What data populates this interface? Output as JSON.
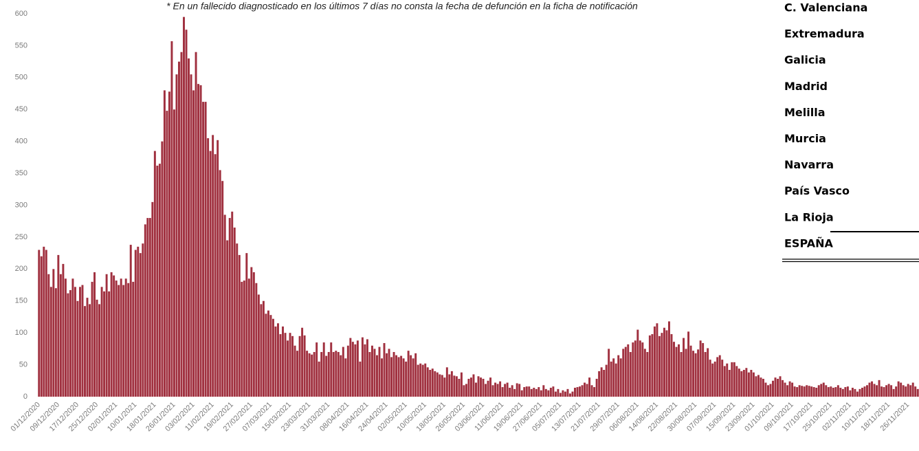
{
  "chart_data": {
    "type": "bar",
    "note": "* En un fallecido diagnosticado en los últimos 7 días no consta la fecha de defunción en la ficha de notificación",
    "color": "#a0303f",
    "grid": false,
    "ylim": [
      0,
      600
    ],
    "yticks": [
      0,
      50,
      100,
      150,
      200,
      250,
      300,
      350,
      400,
      450,
      500,
      550,
      600
    ],
    "categories": [
      "01/12/2020",
      null,
      null,
      null,
      null,
      null,
      null,
      null,
      "09/12/2020",
      null,
      null,
      null,
      null,
      null,
      null,
      null,
      "17/12/2020",
      null,
      null,
      null,
      null,
      null,
      null,
      null,
      "25/12/2020",
      null,
      null,
      null,
      null,
      null,
      null,
      null,
      "02/01/2021",
      null,
      null,
      null,
      null,
      null,
      null,
      null,
      "10/01/2021",
      null,
      null,
      null,
      null,
      null,
      null,
      null,
      "18/01/2021",
      null,
      null,
      null,
      null,
      null,
      null,
      null,
      "26/01/2021",
      null,
      null,
      null,
      null,
      null,
      null,
      null,
      "03/02/2021",
      null,
      null,
      null,
      null,
      null,
      null,
      null,
      "11/02/2021",
      null,
      null,
      null,
      null,
      null,
      null,
      null,
      "19/02/2021",
      null,
      null,
      null,
      null,
      null,
      null,
      null,
      "27/02/2021",
      null,
      null,
      null,
      null,
      null,
      null,
      null,
      "07/03/2021",
      null,
      null,
      null,
      null,
      null,
      null,
      null,
      "15/03/2021",
      null,
      null,
      null,
      null,
      null,
      null,
      null,
      "23/03/2021",
      null,
      null,
      null,
      null,
      null,
      null,
      null,
      "31/03/2021",
      null,
      null,
      null,
      null,
      null,
      null,
      null,
      "08/04/2021",
      null,
      null,
      null,
      null,
      null,
      null,
      null,
      "16/04/2021",
      null,
      null,
      null,
      null,
      null,
      null,
      null,
      "24/04/2021",
      null,
      null,
      null,
      null,
      null,
      null,
      null,
      "02/05/2021",
      null,
      null,
      null,
      null,
      null,
      null,
      null,
      "10/05/2021",
      null,
      null,
      null,
      null,
      null,
      null,
      null,
      "18/05/2021",
      null,
      null,
      null,
      null,
      null,
      null,
      null,
      "26/05/2021",
      null,
      null,
      null,
      null,
      null,
      null,
      null,
      "03/06/2021",
      null,
      null,
      null,
      null,
      null,
      null,
      null,
      "11/06/2021",
      null,
      null,
      null,
      null,
      null,
      null,
      null,
      "19/06/2021",
      null,
      null,
      null,
      null,
      null,
      null,
      null,
      "27/06/2021",
      null,
      null,
      null,
      null,
      null,
      null,
      null,
      "05/07/2021",
      null,
      null,
      null,
      null,
      null,
      null,
      null,
      "13/07/2021",
      null,
      null,
      null,
      null,
      null,
      null,
      null,
      "21/07/2021",
      null,
      null,
      null,
      null,
      null,
      null,
      null,
      "29/07/2021",
      null,
      null,
      null,
      null,
      null,
      null,
      null,
      "06/08/2021",
      null,
      null,
      null,
      null,
      null,
      null,
      null,
      "14/08/2021",
      null,
      null,
      null,
      null,
      null,
      null,
      null,
      "22/08/2021",
      null,
      null,
      null,
      null,
      null,
      null,
      null,
      "30/08/2021",
      null,
      null,
      null,
      null,
      null,
      null,
      null,
      "07/09/2021",
      null,
      null,
      null,
      null,
      null,
      null,
      null,
      "15/09/2021",
      null,
      null,
      null,
      null,
      null,
      null,
      null,
      "23/09/2021",
      null,
      null,
      null,
      null,
      null,
      null,
      null,
      "01/10/2021",
      null,
      null,
      null,
      null,
      null,
      null,
      null,
      "09/10/2021",
      null,
      null,
      null,
      null,
      null,
      null,
      null,
      "17/10/2021",
      null,
      null,
      null,
      null,
      null,
      null,
      null,
      "25/10/2021",
      null,
      null,
      null,
      null,
      null,
      null,
      null,
      "02/11/2021",
      null,
      null,
      null,
      null,
      null,
      null,
      null,
      "10/11/2021",
      null,
      null,
      null,
      null,
      null,
      null,
      null,
      "18/11/2021",
      null,
      null,
      null,
      null,
      null,
      null,
      null,
      "26/11/2021",
      null,
      null,
      null,
      null
    ],
    "values": [
      230,
      220,
      235,
      230,
      192,
      172,
      200,
      170,
      222,
      192,
      208,
      185,
      162,
      167,
      185,
      172,
      150,
      172,
      175,
      142,
      155,
      145,
      180,
      195,
      152,
      145,
      172,
      165,
      192,
      165,
      195,
      190,
      182,
      175,
      185,
      175,
      185,
      178,
      238,
      180,
      230,
      235,
      225,
      240,
      270,
      280,
      280,
      305,
      385,
      362,
      365,
      400,
      480,
      448,
      478,
      557,
      450,
      505,
      525,
      540,
      595,
      575,
      530,
      505,
      480,
      540,
      490,
      488,
      462,
      462,
      405,
      385,
      410,
      380,
      402,
      355,
      338,
      285,
      245,
      280,
      290,
      265,
      240,
      222,
      180,
      182,
      225,
      185,
      203,
      195,
      178,
      160,
      145,
      150,
      130,
      135,
      128,
      122,
      110,
      115,
      98,
      110,
      100,
      88,
      100,
      95,
      80,
      72,
      95,
      108,
      96,
      72,
      68,
      66,
      70,
      85,
      55,
      70,
      85,
      64,
      70,
      85,
      70,
      72,
      70,
      65,
      78,
      60,
      80,
      92,
      86,
      82,
      88,
      55,
      93,
      82,
      90,
      70,
      80,
      75,
      65,
      78,
      60,
      84,
      68,
      75,
      62,
      70,
      65,
      62,
      64,
      60,
      55,
      72,
      65,
      60,
      68,
      50,
      52,
      50,
      52,
      46,
      42,
      44,
      40,
      38,
      35,
      34,
      30,
      46,
      35,
      40,
      33,
      32,
      28,
      38,
      18,
      20,
      28,
      30,
      35,
      22,
      32,
      30,
      28,
      20,
      25,
      30,
      18,
      22,
      20,
      24,
      15,
      20,
      22,
      14,
      18,
      12,
      21,
      20,
      10,
      15,
      16,
      16,
      12,
      14,
      12,
      15,
      10,
      18,
      12,
      10,
      14,
      16,
      8,
      12,
      6,
      10,
      8,
      12,
      5,
      8,
      14,
      15,
      16,
      18,
      22,
      20,
      30,
      18,
      15,
      28,
      40,
      46,
      42,
      50,
      75,
      55,
      60,
      52,
      65,
      60,
      75,
      78,
      82,
      70,
      85,
      88,
      105,
      88,
      85,
      75,
      70,
      96,
      98,
      110,
      115,
      95,
      100,
      108,
      104,
      118,
      98,
      86,
      78,
      82,
      70,
      92,
      75,
      102,
      80,
      72,
      68,
      74,
      88,
      84,
      70,
      76,
      58,
      52,
      55,
      62,
      65,
      58,
      48,
      52,
      42,
      54,
      54,
      48,
      44,
      40,
      42,
      45,
      38,
      42,
      38,
      32,
      34,
      30,
      28,
      22,
      18,
      20,
      25,
      30,
      28,
      32,
      26,
      22,
      18,
      24,
      22,
      16,
      15,
      18,
      17,
      16,
      18,
      17,
      16,
      15,
      14,
      18,
      20,
      22,
      18,
      15,
      16,
      14,
      15,
      18,
      14,
      12,
      15,
      16,
      10,
      14,
      12,
      8,
      12,
      14,
      16,
      18,
      22,
      24,
      20,
      18,
      26,
      16,
      15,
      18,
      20,
      18,
      12,
      16,
      24,
      22,
      18,
      16,
      20,
      18,
      22,
      16,
      12
    ]
  },
  "table": {
    "rows": [
      "C. Valenciana",
      "Extremadura",
      "Galicia",
      "Madrid",
      "Melilla",
      "Murcia",
      "Navarra",
      "País Vasco",
      "La Rioja",
      "ESPAÑA"
    ]
  }
}
